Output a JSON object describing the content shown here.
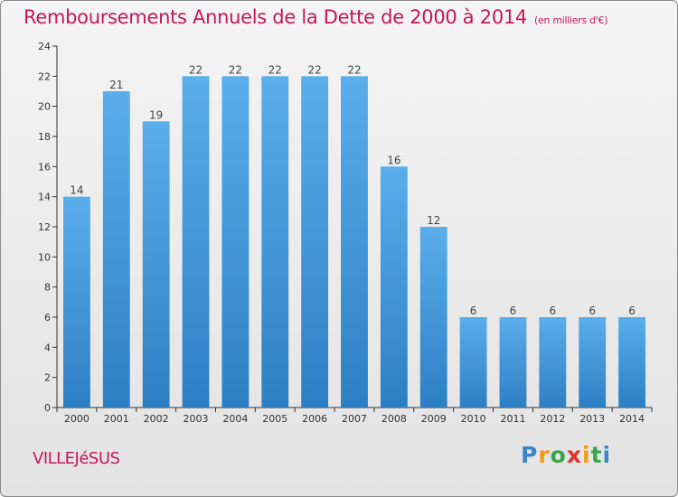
{
  "chart_data": {
    "type": "bar",
    "title": "Remboursements Annuels de la Dette de 2000 à 2014",
    "unit_note": "(en milliers d'€)",
    "categories": [
      "2000",
      "2001",
      "2002",
      "2003",
      "2004",
      "2005",
      "2006",
      "2007",
      "2008",
      "2009",
      "2010",
      "2011",
      "2012",
      "2013",
      "2014"
    ],
    "values": [
      14,
      21,
      19,
      22,
      22,
      22,
      22,
      22,
      16,
      12,
      6,
      6,
      6,
      6,
      6
    ],
    "ylim": [
      0,
      24
    ],
    "yticks": [
      0,
      2,
      4,
      6,
      8,
      10,
      12,
      14,
      16,
      18,
      20,
      22,
      24
    ],
    "grid": false,
    "bar_color": "#4a9fe0"
  },
  "commune": "VILLEJéSUS",
  "logo": {
    "letters": [
      {
        "ch": "P",
        "color": "#3a86c8"
      },
      {
        "ch": "r",
        "color": "#f39c12"
      },
      {
        "ch": "o",
        "color": "#3aa54a"
      },
      {
        "ch": "x",
        "color": "#e0312b"
      },
      {
        "ch": "i",
        "color": "#f39c12"
      },
      {
        "ch": "t",
        "color": "#3aa54a"
      },
      {
        "ch": "i",
        "color": "#3a86c8"
      }
    ]
  }
}
